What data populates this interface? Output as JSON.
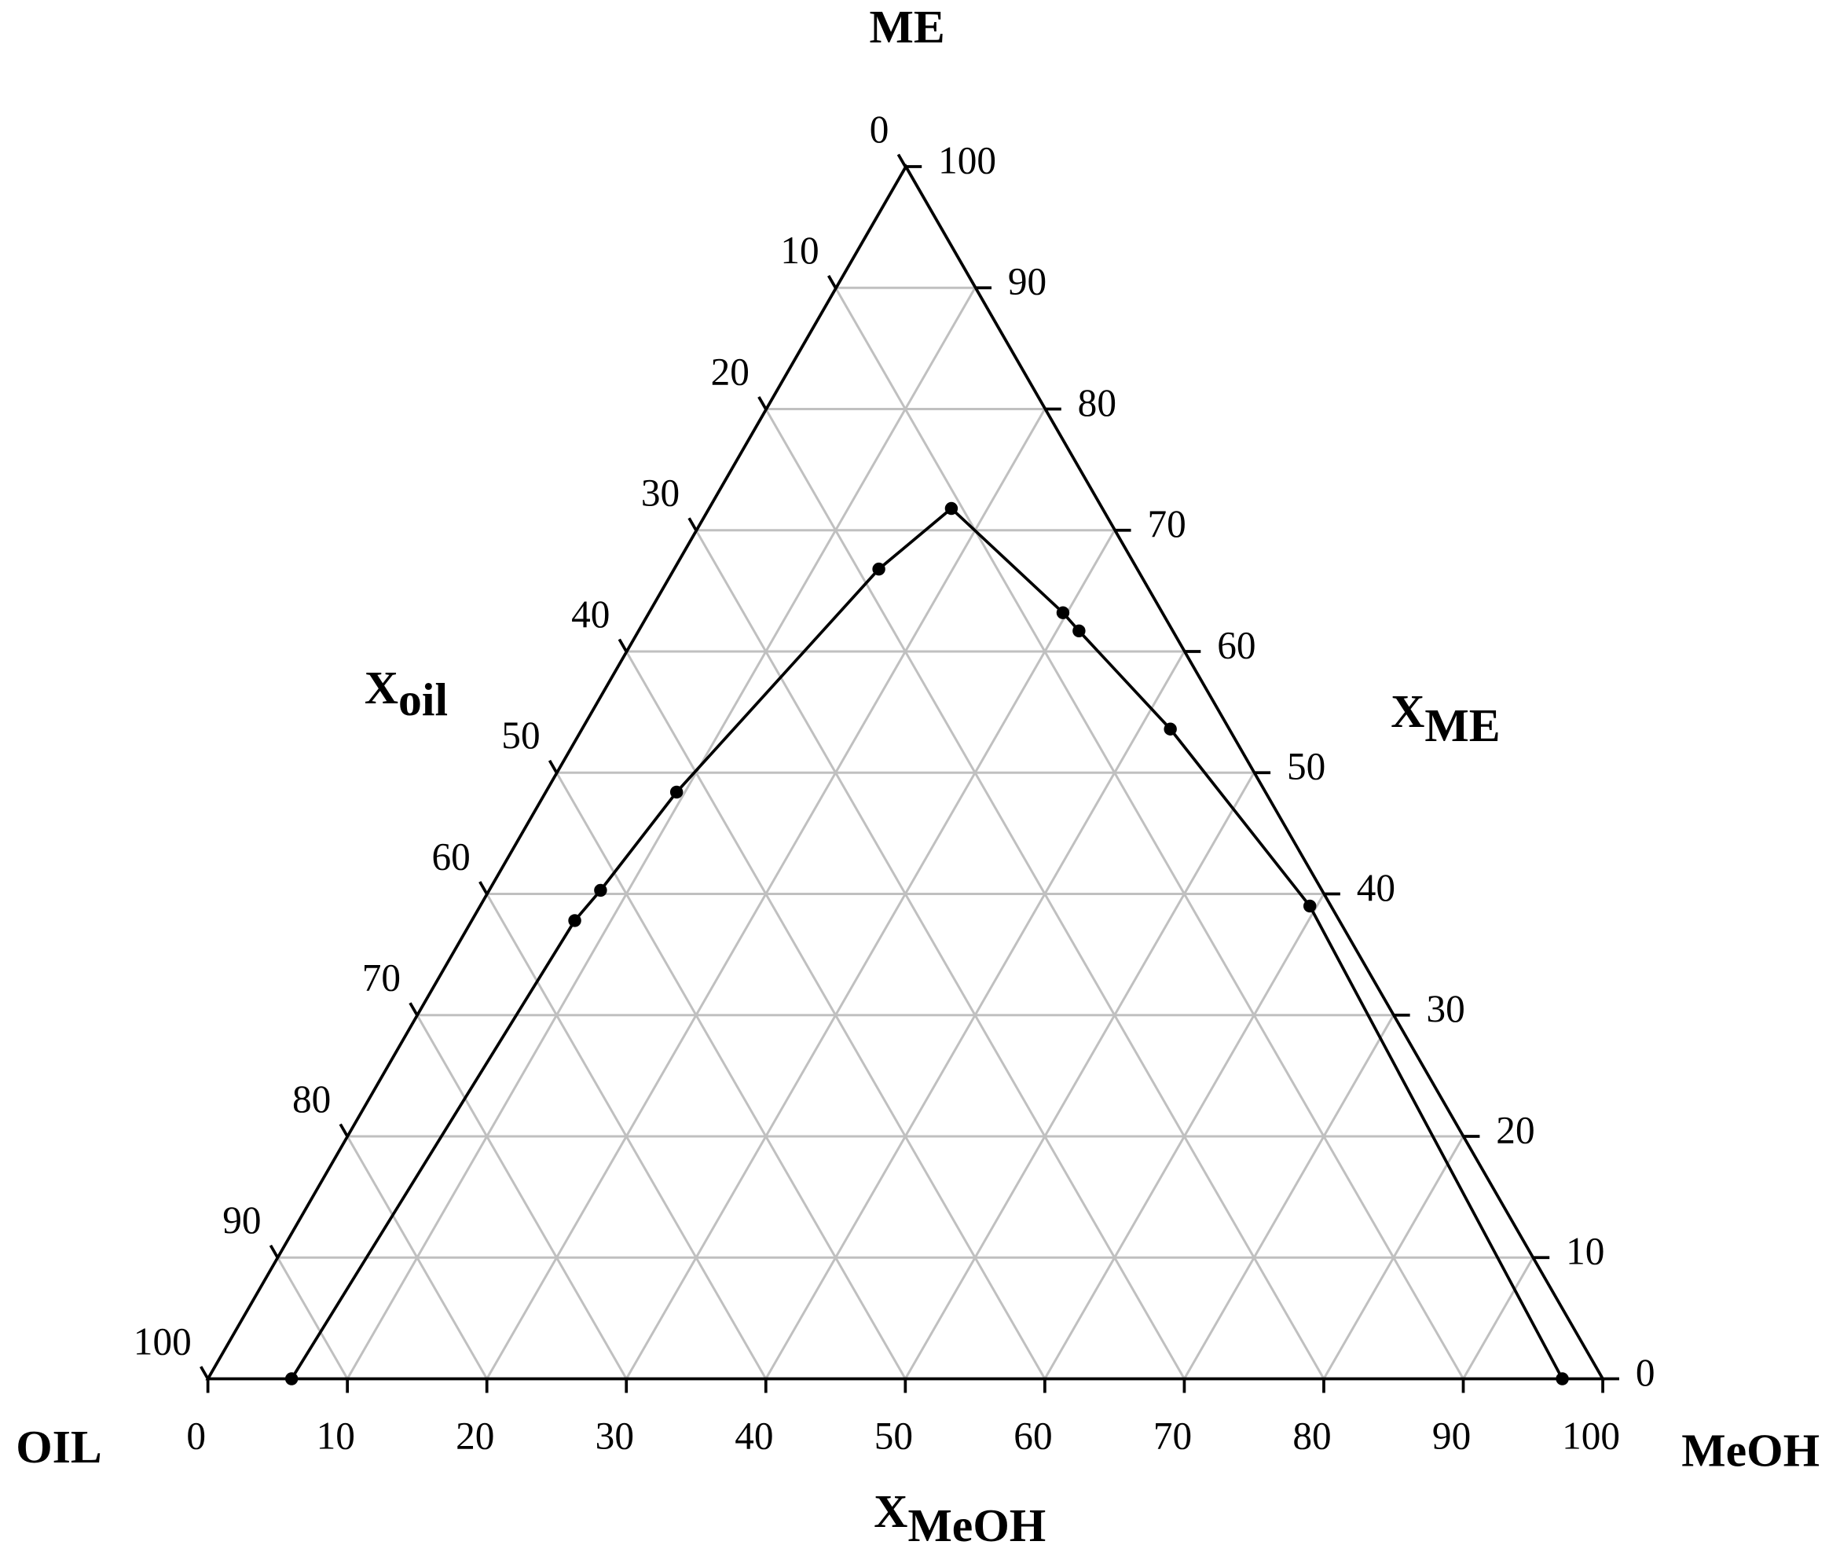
{
  "chart_data": {
    "type": "ternary",
    "corners": {
      "top": "ME",
      "left": "OIL",
      "right": "MeOH"
    },
    "axes": {
      "left": {
        "title": "X",
        "title_sub": "oil",
        "lim": [
          0,
          100
        ],
        "ticks": [
          0,
          10,
          20,
          30,
          40,
          50,
          60,
          70,
          80,
          90,
          100
        ]
      },
      "right": {
        "title": "X",
        "title_sub": "ME",
        "lim": [
          0,
          100
        ],
        "ticks": [
          0,
          10,
          20,
          30,
          40,
          50,
          60,
          70,
          80,
          90,
          100
        ]
      },
      "bottom": {
        "title": "X",
        "title_sub": "MeOH",
        "lim": [
          0,
          100
        ],
        "ticks": [
          0,
          10,
          20,
          30,
          40,
          50,
          60,
          70,
          80,
          90,
          100
        ]
      }
    },
    "series": [
      {
        "color": "#000000",
        "ME": [
          0,
          37.8,
          40.3,
          48.4,
          66.8,
          71.8,
          63.2,
          61.7,
          53.6,
          39.0,
          0
        ],
        "MeOH": [
          6.0,
          7.4,
          8.0,
          9.4,
          14.7,
          17.4,
          29.7,
          31.6,
          42.2,
          59.5,
          97.1
        ]
      }
    ],
    "grid": true,
    "grid_color": "#c0c0c0"
  }
}
